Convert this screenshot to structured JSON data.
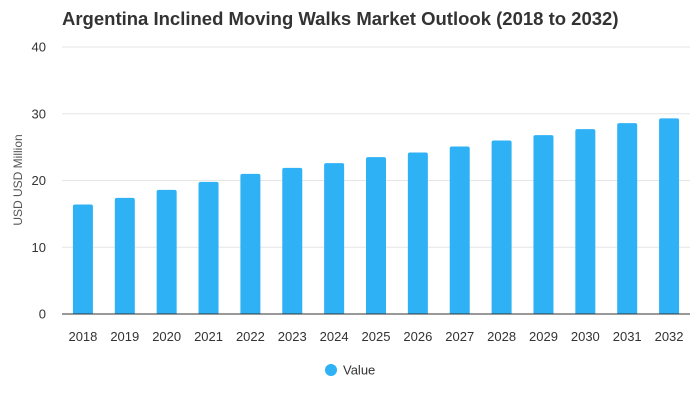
{
  "chart_data": {
    "type": "bar",
    "title": "Argentina Inclined Moving Walks Market Outlook (2018 to 2032)",
    "xlabel": "",
    "ylabel": "USD USD Million",
    "ylim": [
      0,
      40
    ],
    "yticks": [
      0,
      10,
      20,
      30,
      40
    ],
    "grid": true,
    "legend_position": "bottom-center",
    "categories": [
      "2018",
      "2019",
      "2020",
      "2021",
      "2022",
      "2023",
      "2024",
      "2025",
      "2026",
      "2027",
      "2028",
      "2029",
      "2030",
      "2031",
      "2032"
    ],
    "series": [
      {
        "name": "Value",
        "color": "#2eb1f5",
        "values": [
          16.4,
          17.4,
          18.6,
          19.8,
          21.0,
          21.9,
          22.6,
          23.5,
          24.2,
          25.1,
          26.0,
          26.8,
          27.7,
          28.6,
          29.3
        ]
      }
    ]
  }
}
